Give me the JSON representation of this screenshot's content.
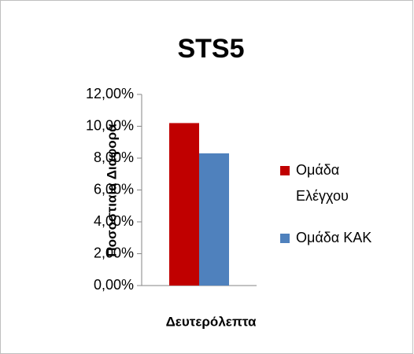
{
  "chart_data": {
    "type": "bar",
    "title": "STS5",
    "x_label": "Δευτερόλεπτα",
    "y_label": "Ποσοστιαία Διαφορά",
    "categories": [
      null
    ],
    "series": [
      {
        "name": "Ομάδα Ελέγχου",
        "color": "#c00000",
        "values": [
          10.2
        ]
      },
      {
        "name": "Ομάδα ΚΑΚ",
        "color": "#4f81bd",
        "values": [
          8.3
        ]
      }
    ],
    "ylim": [
      0,
      12
    ],
    "yticks": [
      {
        "value": 0,
        "label": "0,00%"
      },
      {
        "value": 2,
        "label": "2,00%"
      },
      {
        "value": 4,
        "label": "4,00%"
      },
      {
        "value": 6,
        "label": "6,00%"
      },
      {
        "value": 8,
        "label": "8,00%"
      },
      {
        "value": 10,
        "label": "10,00%"
      },
      {
        "value": 12,
        "label": "12,00%"
      }
    ],
    "legend": "right"
  }
}
